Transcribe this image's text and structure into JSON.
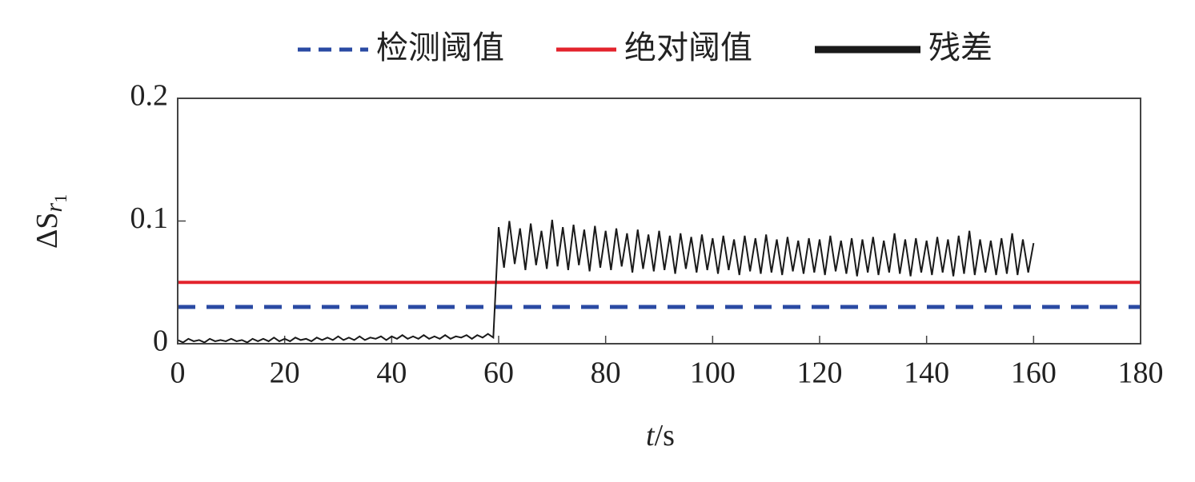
{
  "chart_data": {
    "type": "line",
    "x_label": [
      "t",
      "/s"
    ],
    "y_label": [
      "ΔS",
      "r",
      "1"
    ],
    "xlim": [
      0,
      180
    ],
    "xticks": [
      0,
      20,
      40,
      60,
      80,
      100,
      120,
      140,
      160,
      180
    ],
    "ylim": [
      0,
      0.2
    ],
    "yticks": [
      0,
      0.1,
      0.2
    ],
    "series": [
      {
        "name": "检测阈值",
        "color": "#2a4aa3",
        "dashed": true,
        "x": [
          0,
          180
        ],
        "values": [
          0.03,
          0.03
        ]
      },
      {
        "name": "绝对阈值",
        "color": "#e3232c",
        "dashed": false,
        "x": [
          0,
          180
        ],
        "values": [
          0.05,
          0.05
        ]
      },
      {
        "name": "残差",
        "color": "#1a1a1a",
        "dashed": false,
        "x": [
          0,
          1,
          2,
          3,
          4,
          5,
          6,
          7,
          8,
          9,
          10,
          11,
          12,
          13,
          14,
          15,
          16,
          17,
          18,
          19,
          20,
          21,
          22,
          23,
          24,
          25,
          26,
          27,
          28,
          29,
          30,
          31,
          32,
          33,
          34,
          35,
          36,
          37,
          38,
          39,
          40,
          41,
          42,
          43,
          44,
          45,
          46,
          47,
          48,
          49,
          50,
          51,
          52,
          53,
          54,
          55,
          56,
          57,
          58,
          59,
          60,
          61,
          62,
          63,
          64,
          65,
          66,
          67,
          68,
          69,
          70,
          71,
          72,
          73,
          74,
          75,
          76,
          77,
          78,
          79,
          80,
          81,
          82,
          83,
          84,
          85,
          86,
          87,
          88,
          89,
          90,
          91,
          92,
          93,
          94,
          95,
          96,
          97,
          98,
          99,
          100,
          101,
          102,
          103,
          104,
          105,
          106,
          107,
          108,
          109,
          110,
          111,
          112,
          113,
          114,
          115,
          116,
          117,
          118,
          119,
          120,
          121,
          122,
          123,
          124,
          125,
          126,
          127,
          128,
          129,
          130,
          131,
          132,
          133,
          134,
          135,
          136,
          137,
          138,
          139,
          140,
          141,
          142,
          143,
          144,
          145,
          146,
          147,
          148,
          149,
          150,
          151,
          152,
          153,
          154,
          155,
          156,
          157,
          158,
          159,
          160
        ],
        "values": [
          0.003,
          0.001,
          0.004,
          0.002,
          0.003,
          0.001,
          0.004,
          0.002,
          0.003,
          0.002,
          0.004,
          0.002,
          0.003,
          0.001,
          0.004,
          0.002,
          0.004,
          0.002,
          0.005,
          0.002,
          0.004,
          0.002,
          0.005,
          0.003,
          0.004,
          0.002,
          0.005,
          0.003,
          0.005,
          0.003,
          0.006,
          0.003,
          0.005,
          0.003,
          0.006,
          0.003,
          0.005,
          0.004,
          0.006,
          0.003,
          0.006,
          0.004,
          0.007,
          0.004,
          0.006,
          0.004,
          0.007,
          0.004,
          0.006,
          0.004,
          0.007,
          0.004,
          0.006,
          0.005,
          0.007,
          0.004,
          0.007,
          0.005,
          0.008,
          0.005,
          0.095,
          0.062,
          0.1,
          0.065,
          0.094,
          0.06,
          0.098,
          0.064,
          0.092,
          0.061,
          0.101,
          0.063,
          0.095,
          0.06,
          0.097,
          0.064,
          0.093,
          0.059,
          0.096,
          0.062,
          0.092,
          0.06,
          0.094,
          0.063,
          0.09,
          0.058,
          0.093,
          0.061,
          0.089,
          0.059,
          0.092,
          0.06,
          0.088,
          0.057,
          0.09,
          0.061,
          0.087,
          0.058,
          0.089,
          0.06,
          0.086,
          0.057,
          0.088,
          0.06,
          0.085,
          0.056,
          0.088,
          0.059,
          0.086,
          0.057,
          0.089,
          0.058,
          0.085,
          0.056,
          0.087,
          0.059,
          0.084,
          0.057,
          0.086,
          0.058,
          0.085,
          0.056,
          0.088,
          0.059,
          0.084,
          0.057,
          0.086,
          0.055,
          0.085,
          0.058,
          0.087,
          0.056,
          0.084,
          0.058,
          0.09,
          0.057,
          0.085,
          0.055,
          0.086,
          0.058,
          0.084,
          0.056,
          0.087,
          0.058,
          0.085,
          0.055,
          0.088,
          0.057,
          0.092,
          0.056,
          0.085,
          0.058,
          0.084,
          0.056,
          0.086,
          0.057,
          0.09,
          0.056,
          0.085,
          0.058,
          0.082
        ]
      }
    ]
  }
}
